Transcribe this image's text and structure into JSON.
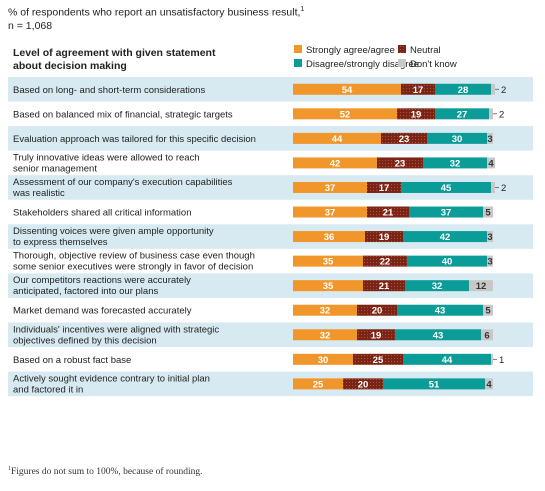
{
  "subtitle": "% of respondents who report an unsatisfactory business result,",
  "subtitle_sup": "1",
  "sample": "n = 1,068",
  "footnote_sup": "1",
  "footnote": "Figures do not sum to 100%, because of rounding.",
  "colors": {
    "agree": "#f0962a",
    "neutral": "#7a2416",
    "disagree": "#0c9c98",
    "dontknow": "#c8c8c8",
    "rowband": "#d8eaf1"
  },
  "chart_data": {
    "type": "bar",
    "orientation": "horizontal",
    "stacked": true,
    "title": "Level of agreement with given statement about decision making",
    "legend": [
      "Strongly agree/agree",
      "Neutral",
      "Disagree/strongly disagree",
      "Don't know"
    ],
    "legend_placement": "top-right",
    "categories": [
      "Based on long- and short-term considerations",
      "Based on balanced mix of financial, strategic targets",
      "Evaluation approach was tailored for this specific decision",
      "Truly innovative ideas were allowed to reach senior management",
      "Assessment of our company's execution capabilities was realistic",
      "Stakeholders shared all critical information",
      "Dissenting voices were given ample opportunity to express themselves",
      "Thorough, objective review of business case even though some senior executives were strongly in favor of decision",
      "Our competitors reactions were accurately anticipated, factored into our plans",
      "Market demand was forecasted accurately",
      "Individuals' incentives were aligned with strategic objectives defined by this decision",
      "Based on a robust fact base",
      "Actively sought evidence contrary to initial plan and factored it in"
    ],
    "category_lines": [
      [
        "Based on long- and short-term considerations"
      ],
      [
        "Based on balanced mix of financial, strategic targets"
      ],
      [
        "Evaluation approach was tailored for this specific decision"
      ],
      [
        "Truly innovative ideas were allowed to reach",
        "senior management"
      ],
      [
        "Assessment of our company's execution capabilities",
        "was realistic"
      ],
      [
        "Stakeholders shared all critical information"
      ],
      [
        "Dissenting voices were given ample opportunity",
        "to express themselves"
      ],
      [
        "Thorough, objective review of business case even though",
        "some senior executives were strongly in favor of decision"
      ],
      [
        "Our competitors reactions were accurately",
        "anticipated, factored into our plans"
      ],
      [
        "Market demand was forecasted accurately"
      ],
      [
        "Individuals' incentives were aligned with strategic",
        "objectives defined by this decision"
      ],
      [
        "Based on a robust fact base"
      ],
      [
        "Actively sought evidence contrary to initial plan",
        "and factored it in"
      ]
    ],
    "series": [
      {
        "name": "Strongly agree/agree",
        "values": [
          54,
          52,
          44,
          42,
          37,
          37,
          36,
          35,
          35,
          32,
          32,
          30,
          25
        ]
      },
      {
        "name": "Neutral",
        "values": [
          17,
          19,
          23,
          23,
          17,
          21,
          19,
          22,
          21,
          20,
          19,
          25,
          20
        ]
      },
      {
        "name": "Disagree/strongly disagree",
        "values": [
          28,
          27,
          30,
          32,
          45,
          37,
          42,
          40,
          32,
          43,
          43,
          44,
          51
        ]
      },
      {
        "name": "Don't know",
        "values": [
          2,
          2,
          3,
          4,
          2,
          5,
          3,
          3,
          12,
          5,
          6,
          1,
          4
        ]
      }
    ],
    "xlim": [
      0,
      100
    ]
  }
}
